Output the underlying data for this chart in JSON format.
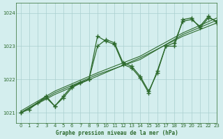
{
  "title": "Graphe pression niveau de la mer (hPa)",
  "bg_color": "#d4eeee",
  "grid_color": "#aacfcf",
  "line_color": "#2d6a2d",
  "xlim": [
    -0.5,
    23
  ],
  "ylim": [
    1020.7,
    1024.3
  ],
  "yticks": [
    1021,
    1022,
    1023,
    1024
  ],
  "xticks": [
    0,
    1,
    2,
    3,
    4,
    5,
    6,
    7,
    8,
    9,
    10,
    11,
    12,
    13,
    14,
    15,
    16,
    17,
    18,
    19,
    20,
    21,
    22,
    23
  ],
  "line1_x": [
    0,
    3,
    4,
    5,
    6,
    7,
    8,
    9,
    10,
    11,
    12,
    13,
    14,
    15,
    16,
    17,
    18,
    19,
    20,
    21,
    22,
    23
  ],
  "line1_y": [
    1021.0,
    1021.45,
    1021.2,
    1021.45,
    1021.75,
    1021.9,
    1022.0,
    1023.0,
    1023.2,
    1023.1,
    1022.5,
    1022.4,
    1022.1,
    1021.65,
    1022.2,
    1023.0,
    1023.0,
    1023.8,
    1023.85,
    1023.55,
    1023.85,
    1023.75
  ],
  "line2_x": [
    0,
    1,
    2,
    3,
    4,
    5,
    6,
    7,
    8,
    9,
    10,
    11,
    12,
    13,
    14,
    15,
    16,
    17,
    18,
    19,
    20,
    21,
    22,
    23
  ],
  "line2_y": [
    1021.0,
    1021.1,
    1021.3,
    1021.5,
    1021.2,
    1021.5,
    1021.8,
    1021.9,
    1022.0,
    1023.3,
    1023.15,
    1023.05,
    1022.45,
    1022.35,
    1022.05,
    1021.6,
    1022.25,
    1023.0,
    1023.1,
    1023.75,
    1023.8,
    1023.6,
    1023.9,
    1023.7
  ],
  "trend1_x": [
    0,
    4,
    9,
    14,
    19,
    23
  ],
  "trend1_y": [
    1021.0,
    1021.55,
    1022.1,
    1022.65,
    1023.3,
    1023.7
  ],
  "trend2_x": [
    0,
    4,
    9,
    14,
    19,
    23
  ],
  "trend2_y": [
    1021.05,
    1021.65,
    1022.2,
    1022.7,
    1023.4,
    1023.85
  ],
  "trend3_x": [
    0,
    4,
    9,
    14,
    19,
    23
  ],
  "trend3_y": [
    1021.0,
    1021.6,
    1022.15,
    1022.6,
    1023.35,
    1023.78
  ]
}
